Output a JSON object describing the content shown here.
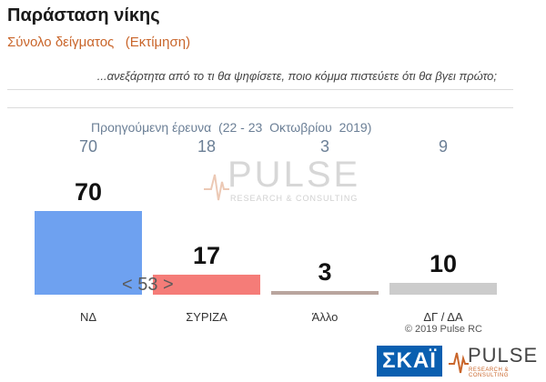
{
  "header": {
    "title": "Παράσταση νίκης",
    "subtitle": "Σύνολο δείγματος   (Εκτίμηση)",
    "question": "...ανεξάρτητα από το τι θα ψηφίσετε, ποιο κόμμα πιστεύετε ότι θα βγει πρώτο;"
  },
  "previous_survey": {
    "label": "Προηγούμενη έρευνα  (22 - 23  Οκτωβρίου  2019)",
    "values": [
      "70",
      "18",
      "3",
      "9"
    ]
  },
  "annotation": "< 53 >",
  "watermark": {
    "name": "PULSE",
    "sub": "RESEARCH & CONSULTING"
  },
  "footer": {
    "copyright": "© 2019 Pulse RC",
    "skai": "ΣΚΑΪ",
    "pulse": "PULSE",
    "pulse_sub": "RESEARCH & CONSULTING"
  },
  "colors": {
    "nd": "#6ea1f0",
    "syriza": "#f57c78",
    "allo": "#b9a59e",
    "dg": "#cccccc",
    "accent": "#c9652a"
  },
  "chart_data": {
    "type": "bar",
    "title": "Παράσταση νίκης",
    "categories": [
      "ΝΔ",
      "ΣΥΡΙΖΑ",
      "Άλλο",
      "ΔΓ / ΔΑ"
    ],
    "values": [
      70,
      17,
      3,
      10
    ],
    "previous_values": [
      70,
      18,
      3,
      9
    ],
    "xlabel": "",
    "ylabel": "",
    "ylim": [
      0,
      70
    ],
    "grid": false
  }
}
